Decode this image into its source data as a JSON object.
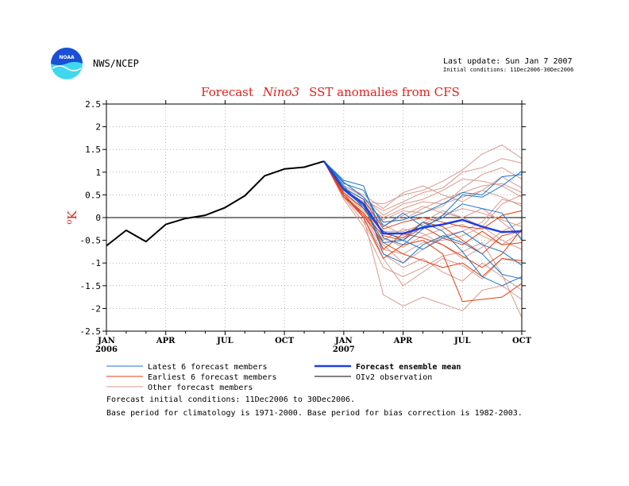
{
  "header": {
    "logo_text": "NOAA",
    "agency": "NWS/NCEP",
    "last_update": "Last update: Sun Jan  7 2007",
    "initial_conditions_short": "Initial conditions: 11Dec2006-30Dec2006"
  },
  "chart_data": {
    "type": "line",
    "title_prefix": "Forecast",
    "title_region": "Nino3",
    "title_suffix": "SST anomalies from CFS",
    "ylabel": "oK",
    "ylim": [
      -2.5,
      2.5
    ],
    "xlim": [
      0,
      21
    ],
    "yticks": [
      "-2.5",
      "-2",
      "-1.5",
      "-1",
      "-0.5",
      "0",
      "0.5",
      "1",
      "1.5",
      "2",
      "2.5"
    ],
    "xticks": [
      {
        "t": 0,
        "label": "JAN",
        "year": "2006"
      },
      {
        "t": 3,
        "label": "APR",
        "year": ""
      },
      {
        "t": 6,
        "label": "JUL",
        "year": ""
      },
      {
        "t": 9,
        "label": "OCT",
        "year": ""
      },
      {
        "t": 12,
        "label": "JAN",
        "year": "2007"
      },
      {
        "t": 15,
        "label": "APR",
        "year": ""
      },
      {
        "t": 18,
        "label": "JUL",
        "year": ""
      },
      {
        "t": 21,
        "label": "OCT",
        "year": ""
      }
    ],
    "grid": true,
    "zero_line": true,
    "observation": {
      "name": "OIv2 observation",
      "color": "#000000",
      "x": [
        0,
        1,
        2,
        3,
        4,
        5,
        6,
        7,
        8,
        9,
        10,
        11
      ],
      "y": [
        -0.62,
        -0.28,
        -0.53,
        -0.15,
        -0.02,
        0.05,
        0.22,
        0.48,
        0.92,
        1.07,
        1.11,
        1.24
      ]
    },
    "ensemble_mean": {
      "name": "Forecast ensemble mean",
      "color": "#1f3fe0",
      "x": [
        11,
        12,
        13,
        14,
        15,
        16,
        17,
        18,
        19,
        20,
        21
      ],
      "y": [
        1.24,
        0.62,
        0.3,
        -0.35,
        -0.35,
        -0.22,
        -0.15,
        -0.05,
        -0.2,
        -0.32,
        -0.3
      ]
    },
    "latest_members": {
      "name": "Latest 6 forecast members",
      "color": "#1b74c8",
      "x": [
        11,
        12,
        13,
        14,
        15,
        16,
        17,
        18,
        19,
        20,
        21
      ],
      "series": [
        [
          1.24,
          0.82,
          0.7,
          -0.45,
          -0.6,
          -0.25,
          0.05,
          0.5,
          0.45,
          0.7,
          1.02
        ],
        [
          1.24,
          0.65,
          0.4,
          -0.8,
          -1.0,
          -0.6,
          -0.4,
          -0.55,
          -0.8,
          -1.25,
          -1.35
        ],
        [
          1.24,
          0.7,
          0.2,
          -0.3,
          -0.5,
          -0.1,
          -0.3,
          -0.75,
          -1.3,
          -1.5,
          -1.3
        ],
        [
          1.24,
          0.75,
          0.6,
          -0.2,
          0.1,
          -0.2,
          0.0,
          0.3,
          0.2,
          0.1,
          -0.5
        ],
        [
          1.24,
          0.6,
          0.25,
          -0.55,
          -0.5,
          -0.7,
          -0.45,
          -0.3,
          -0.6,
          -0.75,
          -1.05
        ],
        [
          1.24,
          0.78,
          0.45,
          -0.1,
          -0.05,
          0.1,
          0.3,
          0.55,
          0.5,
          0.9,
          0.95
        ]
      ]
    },
    "earliest_members": {
      "name": "Earliest 6 forecast members",
      "color": "#e23f12",
      "x": [
        11,
        12,
        13,
        14,
        15,
        16,
        17,
        18,
        19,
        20,
        21
      ],
      "series": [
        [
          1.24,
          0.5,
          0.0,
          -0.9,
          -0.6,
          -0.5,
          -0.8,
          -1.85,
          -1.8,
          -1.75,
          -1.45
        ],
        [
          1.24,
          0.55,
          0.2,
          -0.35,
          -0.45,
          -0.1,
          -0.2,
          -0.5,
          -0.8,
          -0.4,
          -0.3
        ],
        [
          1.24,
          0.6,
          0.3,
          -0.7,
          -0.35,
          -0.45,
          -0.6,
          -0.85,
          -1.1,
          -0.8,
          -0.25
        ],
        [
          1.24,
          0.45,
          0.1,
          -0.4,
          -0.5,
          -0.2,
          -0.45,
          -0.6,
          -0.3,
          -0.6,
          -0.55
        ],
        [
          1.24,
          0.65,
          0.4,
          -0.25,
          -0.1,
          0.0,
          -0.1,
          -0.2,
          -0.25,
          0.05,
          0.15
        ],
        [
          1.24,
          0.5,
          0.05,
          -0.55,
          -0.8,
          -0.95,
          -1.1,
          -1.0,
          -1.3,
          -0.9,
          -0.95
        ]
      ]
    },
    "other_members": {
      "name": "Other forecast members",
      "color": "#d89a8e",
      "x": [
        11,
        12,
        13,
        14,
        15,
        16,
        17,
        18,
        19,
        20,
        21
      ],
      "series": [
        [
          1.24,
          0.55,
          0.0,
          -1.7,
          -1.95,
          -1.75,
          -1.9,
          -2.05,
          -1.6,
          -1.5,
          -1.8
        ],
        [
          1.24,
          0.6,
          0.35,
          0.3,
          0.5,
          0.6,
          0.8,
          1.05,
          1.4,
          1.6,
          1.3
        ],
        [
          1.24,
          0.65,
          0.4,
          0.15,
          0.35,
          0.55,
          0.65,
          1.0,
          1.1,
          1.3,
          1.2
        ],
        [
          1.24,
          0.5,
          0.1,
          -0.6,
          -1.0,
          -0.7,
          -0.4,
          -0.3,
          -0.1,
          0.4,
          0.3
        ],
        [
          1.24,
          0.7,
          0.45,
          0.05,
          0.3,
          0.4,
          0.6,
          0.85,
          0.8,
          0.7,
          0.45
        ],
        [
          1.24,
          0.45,
          -0.1,
          -0.9,
          -1.5,
          -1.2,
          -0.9,
          -1.05,
          -1.35,
          -0.9,
          -1.0
        ],
        [
          1.24,
          0.6,
          0.25,
          -0.1,
          -0.05,
          0.2,
          0.4,
          0.55,
          0.7,
          0.75,
          0.55
        ],
        [
          1.24,
          0.55,
          0.15,
          -0.3,
          -0.3,
          -0.15,
          0.05,
          0.2,
          0.1,
          -0.05,
          -0.2
        ],
        [
          1.24,
          0.4,
          -0.2,
          -1.1,
          -1.3,
          -1.1,
          -0.85,
          -0.75,
          -0.55,
          -1.25,
          -2.2
        ],
        [
          1.24,
          0.65,
          0.3,
          0.0,
          0.2,
          0.35,
          0.3,
          0.45,
          0.6,
          0.9,
          0.65
        ],
        [
          1.24,
          0.5,
          0.05,
          -0.7,
          -0.8,
          -0.55,
          -0.5,
          -0.4,
          -0.2,
          -0.5,
          -0.7
        ],
        [
          1.24,
          0.6,
          0.3,
          -0.2,
          0.05,
          0.25,
          0.1,
          0.0,
          0.2,
          -0.1,
          -0.45
        ],
        [
          1.24,
          0.55,
          0.2,
          -0.45,
          -0.65,
          -0.4,
          -0.25,
          -0.15,
          -0.4,
          -0.6,
          -0.3
        ],
        [
          1.24,
          0.7,
          0.5,
          0.2,
          0.55,
          0.7,
          0.5,
          0.35,
          0.6,
          0.45,
          0.25
        ],
        [
          1.24,
          0.45,
          0.0,
          -0.8,
          -1.1,
          -0.9,
          -1.2,
          -1.4,
          -1.0,
          -1.3,
          -1.6
        ],
        [
          1.24,
          0.6,
          0.35,
          -0.05,
          0.15,
          0.1,
          0.25,
          0.65,
          0.95,
          1.1,
          0.85
        ],
        [
          1.24,
          0.5,
          0.1,
          -0.5,
          -0.25,
          -0.35,
          -0.6,
          -0.9,
          -0.65,
          -0.3,
          -0.1
        ],
        [
          1.24,
          0.65,
          0.25,
          -0.15,
          -0.4,
          -0.1,
          0.15,
          0.0,
          -0.2,
          0.3,
          0.5
        ]
      ]
    }
  },
  "legend": {
    "latest": "Latest 6 forecast members",
    "earliest": "Earliest 6 forecast members",
    "other": "Other forecast members",
    "mean": "Forecast ensemble mean",
    "obs": "OIv2 observation"
  },
  "footer": {
    "line1": "Forecast initial conditions: 11Dec2006 to 30Dec2006.",
    "line2": "Base period for climatology is 1971-2000. Base period for bias correction is 1982-2003."
  },
  "colors": {
    "title": "#e3201b",
    "logo_blue": "#1a4fd8",
    "logo_cyan": "#3fd8f0"
  }
}
